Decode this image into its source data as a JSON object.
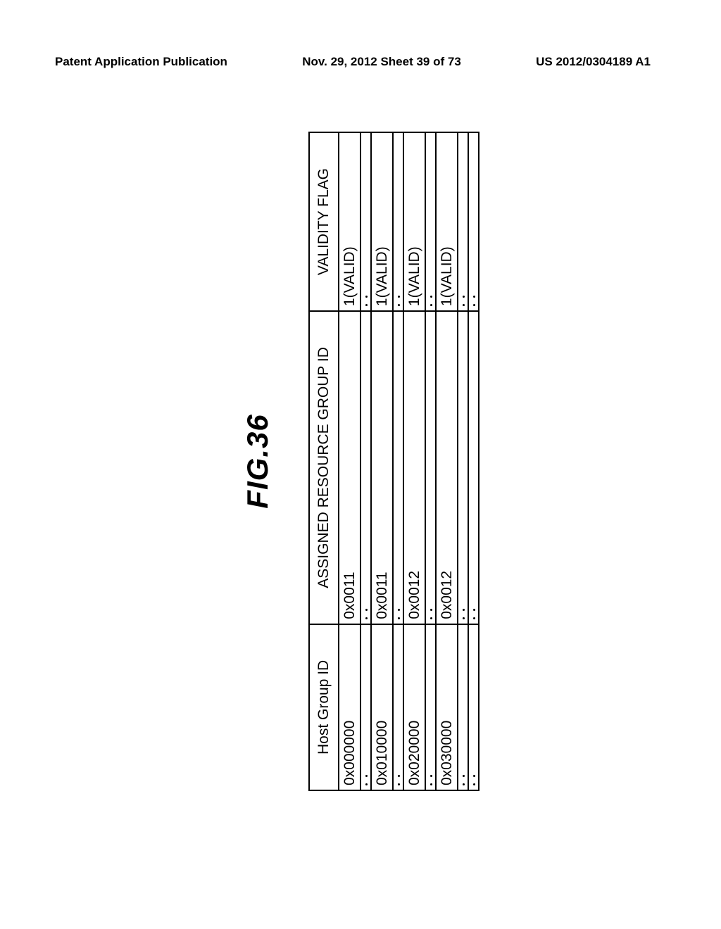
{
  "header": {
    "left": "Patent Application Publication",
    "center": "Nov. 29, 2012  Sheet 39 of 73",
    "right": "US 2012/0304189 A1"
  },
  "figure": {
    "title": "FIG.36",
    "columns": {
      "host": "Host Group ID",
      "group": "ASSIGNED RESOURCE GROUP ID",
      "flag": "VALIDITY FLAG"
    },
    "rows": [
      {
        "host": "0x000000",
        "group": "0x0011",
        "flag": "1(VALID)"
      },
      {
        "host": "0x010000",
        "group": "0x0011",
        "flag": "1(VALID)"
      },
      {
        "host": "0x020000",
        "group": "0x0012",
        "flag": "1(VALID)"
      },
      {
        "host": "0x030000",
        "group": "0x0012",
        "flag": "1(VALID)"
      }
    ]
  }
}
